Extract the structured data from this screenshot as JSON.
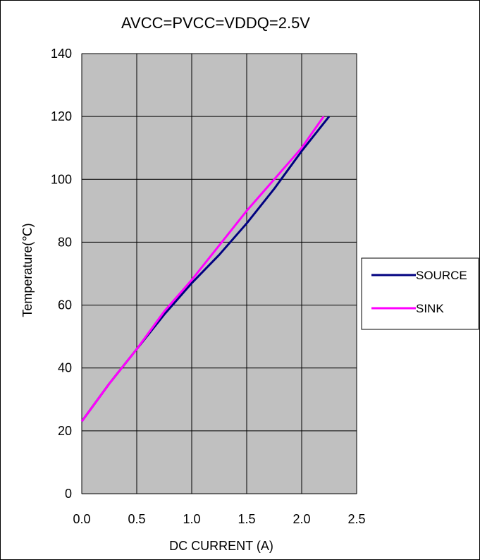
{
  "chart_data": {
    "type": "line",
    "title": "AVCC=PVCC=VDDQ=2.5V",
    "xlabel": "DC CURRENT (A)",
    "ylabel": "Temperature(℃)",
    "xlim": [
      0,
      2.5
    ],
    "ylim": [
      0,
      140
    ],
    "xticks": [
      "0.0",
      "0.5",
      "1.0",
      "1.5",
      "2.0",
      "2.5"
    ],
    "yticks": [
      "0",
      "20",
      "40",
      "60",
      "80",
      "100",
      "120",
      "140"
    ],
    "grid": true,
    "plot_background": "#c0c0c0",
    "legend_position": "right",
    "series": [
      {
        "name": "SOURCE",
        "color": "#000080",
        "x": [
          0.0,
          0.25,
          0.5,
          0.75,
          1.0,
          1.25,
          1.5,
          1.75,
          2.0,
          2.25
        ],
        "y": [
          23,
          35,
          46,
          57,
          67,
          76,
          86,
          97,
          109,
          120
        ]
      },
      {
        "name": "SINK",
        "color": "#ff00ff",
        "x": [
          0.0,
          0.25,
          0.5,
          0.75,
          1.0,
          1.25,
          1.5,
          1.75,
          2.0,
          2.1,
          2.2
        ],
        "y": [
          23,
          35,
          46,
          58,
          68,
          79,
          90,
          100,
          110,
          115,
          120
        ]
      }
    ]
  }
}
